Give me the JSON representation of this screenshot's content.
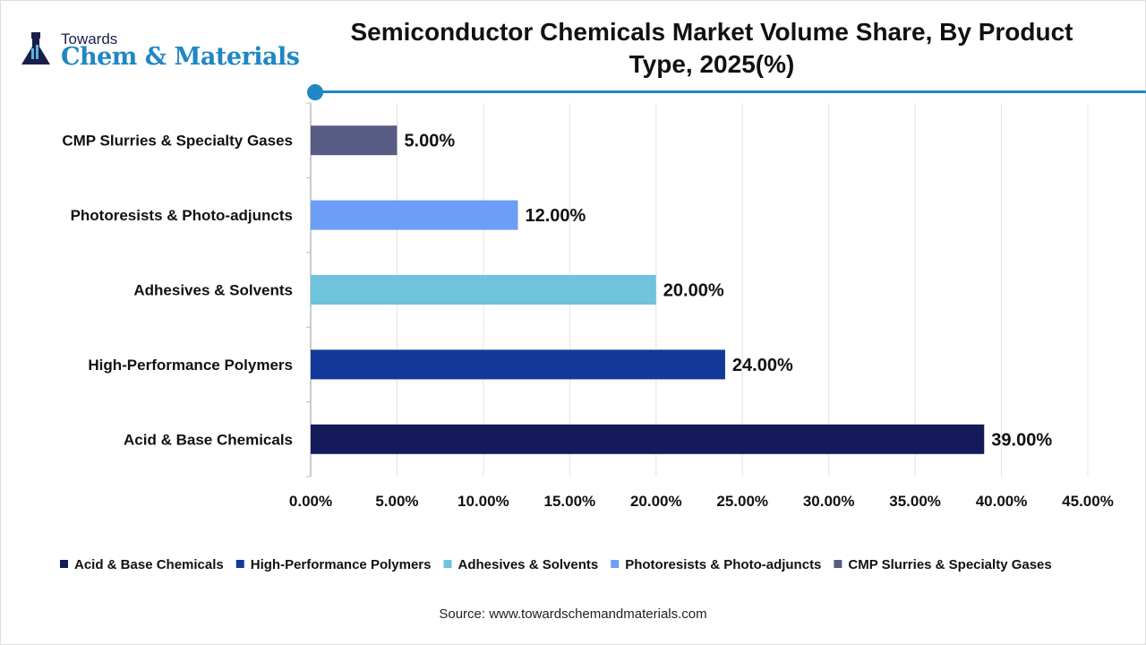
{
  "logo": {
    "line1": "Towards",
    "line2": "Chem & Materials"
  },
  "title": "Semiconductor Chemicals Market Volume Share, By Product Type, 2025(%)",
  "source": "Source: www.towardschemandmaterials.com",
  "chart_data": {
    "type": "bar",
    "orientation": "horizontal",
    "title": "Semiconductor Chemicals Market Volume Share, By Product Type, 2025(%)",
    "categories": [
      "Acid & Base Chemicals",
      "High-Performance Polymers",
      "Adhesives & Solvents",
      "Photoresists & Photo-adjuncts",
      "CMP Slurries & Specialty Gases"
    ],
    "values": [
      39,
      24,
      20,
      12,
      5
    ],
    "data_labels": [
      "39.00%",
      "24.00%",
      "20.00%",
      "12.00%",
      "5.00%"
    ],
    "colors": [
      "#141a5a",
      "#12399a",
      "#6fc3dc",
      "#6d9ef7",
      "#585c85"
    ],
    "xlim": [
      0,
      45
    ],
    "x_ticks": [
      "0.00%",
      "5.00%",
      "10.00%",
      "15.00%",
      "20.00%",
      "25.00%",
      "30.00%",
      "35.00%",
      "40.00%",
      "45.00%"
    ],
    "grid": true,
    "legend": "bottom",
    "xlabel": "",
    "ylabel": ""
  }
}
